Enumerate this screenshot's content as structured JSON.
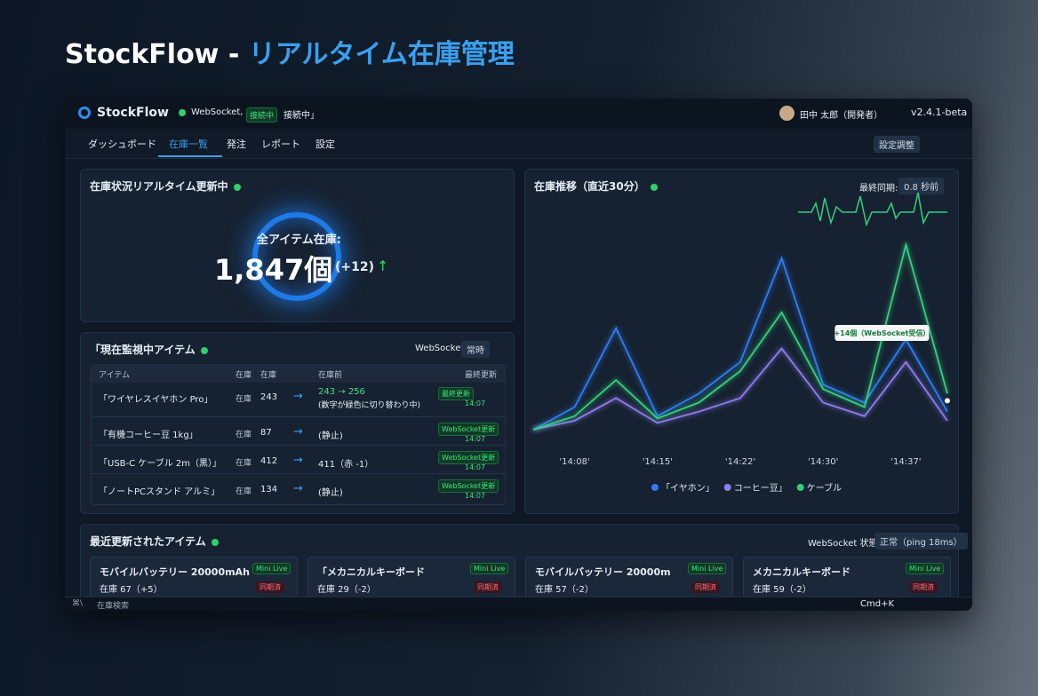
{
  "page_title": {
    "brand": "StockFlow - ",
    "subtitle": "リアルタイム在庫管理"
  },
  "header": {
    "logo": "StockFlow",
    "ws_label": "WebSocket,",
    "ws_badge": "接続中",
    "ws_status": "接続中」",
    "user": "田中 太郎（開発者）",
    "version": "v2.4.1-beta"
  },
  "nav": {
    "items": [
      "ダッシュボード",
      "在庫一覧",
      "発注",
      "レポート",
      "設定"
    ],
    "active": 1,
    "action": "設定調整"
  },
  "overview": {
    "title": "在庫状況リアルタイム更新中",
    "label": "全アイテム在庫:",
    "total": "1,847個",
    "delta": "(+12)"
  },
  "monitor": {
    "title": "「現在監視中アイテム",
    "filter_label": "WebSocket",
    "filter_value": "常時",
    "columns": [
      "アイテム",
      "在庫",
      "在庫",
      "在庫前",
      "最終更新"
    ],
    "rows": [
      {
        "name": "「ワイヤレスイヤホン Pro」",
        "unit": "在庫",
        "stock": 243,
        "change": "243 → 256",
        "note": "(数字が緑色に切り替わり中)",
        "badge": "最終更新",
        "time": "14:07"
      },
      {
        "name": "「有機コーヒー豆 1kg」",
        "unit": "在庫",
        "stock": 87,
        "change": "(静止)",
        "badge": "WebSocket更新",
        "time": "14:07"
      },
      {
        "name": "「USB-C ケーブル 2m（黒）」",
        "unit": "在庫",
        "stock": 412,
        "change": "411（赤 -1）",
        "badge": "WebSocket更新",
        "time": "14:07"
      },
      {
        "name": "「ノートPCスタンド アルミ」",
        "unit": "在庫",
        "stock": 134,
        "change": "(静止)",
        "badge": "WebSocket更新",
        "time": "14:07"
      }
    ]
  },
  "trend_chart": {
    "type": "line",
    "title": "在庫推移（直近30分）",
    "sync_label": "最終同期:",
    "sync_value": "0.8 秒前",
    "categories": [
      null,
      "'14:08'",
      null,
      "'14:15'",
      null,
      "'14:22'",
      null,
      "'14:30'",
      null,
      "'14:37'",
      null
    ],
    "ylim": [
      0,
      100
    ],
    "series": [
      {
        "name": "「イヤホン」",
        "color": "#2f7df6",
        "values": [
          0,
          10,
          45,
          6,
          16,
          30,
          76,
          20,
          12,
          40,
          8
        ]
      },
      {
        "name": "コーヒー豆」",
        "color": "#8f7cf0",
        "values": [
          0,
          4,
          14,
          3,
          8,
          14,
          36,
          12,
          6,
          30,
          4
        ]
      },
      {
        "name": "ケーブル",
        "color": "#34d07f",
        "values": [
          0,
          6,
          22,
          5,
          12,
          26,
          52,
          18,
          10,
          82,
          16
        ]
      }
    ],
    "annotation": "+14個（WebSocket受信）"
  },
  "recent": {
    "title": "最近更新されたアイテム",
    "status_label": "WebSocket 状態:",
    "status_value": "正常（ping 18ms）",
    "cards": [
      {
        "name": "モバイルバッテリー 20000mAh",
        "live": "Mini Live",
        "stock": "在庫 67（+5）",
        "badge": "同期済"
      },
      {
        "name": "「メカニカルキーボード",
        "live": "Mini Live",
        "stock": "在庫 29（-2）",
        "badge": "同期済"
      },
      {
        "name": "モバイルバッテリー 20000m",
        "live": "Mini Live",
        "stock": "在庫 57（-2）",
        "badge": "同期済"
      },
      {
        "name": "メカニカルキーボード",
        "live": "Mini Live",
        "stock": "在庫 59（-2）",
        "badge": "同期済"
      }
    ]
  },
  "footer": {
    "search": "在庫検索",
    "shortcut": "Cmd+K"
  }
}
